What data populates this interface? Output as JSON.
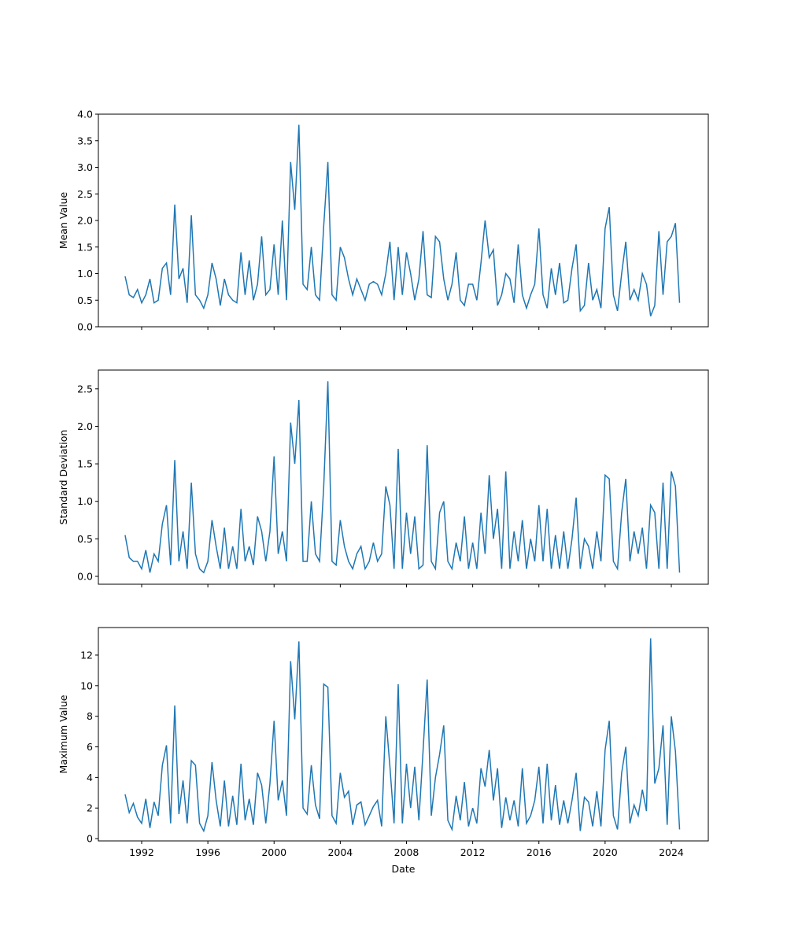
{
  "chart_data": [
    {
      "type": "line",
      "ylabel": "Mean Value",
      "color": "#1f77b4",
      "xlim": [
        1989.385,
        2026.235
      ],
      "ylim": [
        0,
        4
      ],
      "yticks": [
        {
          "value": 0,
          "label": "0.0"
        },
        {
          "value": 0.5,
          "label": "0.5"
        },
        {
          "value": 1,
          "label": "1.0"
        },
        {
          "value": 1.5,
          "label": "1.5"
        },
        {
          "value": 2,
          "label": "2.0"
        },
        {
          "value": 2.5,
          "label": "2.5"
        },
        {
          "value": 3,
          "label": "3.0"
        },
        {
          "value": 3.5,
          "label": "3.5"
        },
        {
          "value": 4,
          "label": "4.0"
        }
      ],
      "x": [
        1991,
        1991.25,
        1991.5,
        1991.75,
        1992,
        1992.25,
        1992.5,
        1992.75,
        1993,
        1993.25,
        1993.5,
        1993.75,
        1994,
        1994.25,
        1994.5,
        1994.75,
        1995,
        1995.25,
        1995.5,
        1995.75,
        1996,
        1996.25,
        1996.5,
        1996.75,
        1997,
        1997.25,
        1997.5,
        1997.75,
        1998,
        1998.25,
        1998.5,
        1998.75,
        1999,
        1999.25,
        1999.5,
        1999.75,
        2000,
        2000.25,
        2000.5,
        2000.75,
        2001,
        2001.25,
        2001.5,
        2001.75,
        2002,
        2002.25,
        2002.5,
        2002.75,
        2003,
        2003.25,
        2003.5,
        2003.75,
        2004,
        2004.25,
        2004.5,
        2004.75,
        2005,
        2005.25,
        2005.5,
        2005.75,
        2006,
        2006.25,
        2006.5,
        2006.75,
        2007,
        2007.25,
        2007.5,
        2007.75,
        2008,
        2008.25,
        2008.5,
        2008.75,
        2009,
        2009.25,
        2009.5,
        2009.75,
        2010,
        2010.25,
        2010.5,
        2010.75,
        2011,
        2011.25,
        2011.5,
        2011.75,
        2012,
        2012.25,
        2012.5,
        2012.75,
        2013,
        2013.25,
        2013.5,
        2013.75,
        2014,
        2014.25,
        2014.5,
        2014.75,
        2015,
        2015.25,
        2015.5,
        2015.75,
        2016,
        2016.25,
        2016.5,
        2016.75,
        2017,
        2017.25,
        2017.5,
        2017.75,
        2018,
        2018.25,
        2018.5,
        2018.75,
        2019,
        2019.25,
        2019.5,
        2019.75,
        2020,
        2020.25,
        2020.5,
        2020.75,
        2021,
        2021.25,
        2021.5,
        2021.75,
        2022,
        2022.25,
        2022.5,
        2022.75,
        2023,
        2023.25,
        2023.5,
        2023.75,
        2024,
        2024.25,
        2024.5
      ],
      "values": [
        0.95,
        0.6,
        0.55,
        0.7,
        0.45,
        0.6,
        0.9,
        0.45,
        0.5,
        1.1,
        1.2,
        0.6,
        2.3,
        0.9,
        1.1,
        0.45,
        2.1,
        0.6,
        0.5,
        0.35,
        0.6,
        1.2,
        0.9,
        0.4,
        0.9,
        0.6,
        0.5,
        0.45,
        1.4,
        0.6,
        1.25,
        0.5,
        0.8,
        1.7,
        0.6,
        0.7,
        1.55,
        0.6,
        2.0,
        0.5,
        3.1,
        2.2,
        3.8,
        0.8,
        0.7,
        1.5,
        0.6,
        0.5,
        1.9,
        3.1,
        0.6,
        0.5,
        1.5,
        1.3,
        0.9,
        0.6,
        0.9,
        0.7,
        0.5,
        0.8,
        0.85,
        0.8,
        0.6,
        1.0,
        1.6,
        0.5,
        1.5,
        0.6,
        1.4,
        1.0,
        0.5,
        0.9,
        1.8,
        0.6,
        0.55,
        1.7,
        1.6,
        0.9,
        0.5,
        0.8,
        1.4,
        0.5,
        0.4,
        0.8,
        0.8,
        0.5,
        1.2,
        2.0,
        1.3,
        1.45,
        0.4,
        0.6,
        1.0,
        0.9,
        0.45,
        1.55,
        0.6,
        0.35,
        0.6,
        0.8,
        1.85,
        0.6,
        0.35,
        1.1,
        0.6,
        1.2,
        0.45,
        0.5,
        1.1,
        1.55,
        0.3,
        0.4,
        1.2,
        0.5,
        0.7,
        0.35,
        1.85,
        2.25,
        0.6,
        0.3,
        1.0,
        1.6,
        0.5,
        0.7,
        0.5,
        1.0,
        0.8,
        0.2,
        0.4,
        1.8,
        0.6,
        1.6,
        1.7,
        1.95,
        0.45
      ]
    },
    {
      "type": "line",
      "ylabel": "Standard Deviation",
      "color": "#1f77b4",
      "xlim": [
        1989.385,
        2026.235
      ],
      "ylim": [
        -0.105,
        2.75
      ],
      "yticks": [
        {
          "value": 0,
          "label": "0.0"
        },
        {
          "value": 0.5,
          "label": "0.5"
        },
        {
          "value": 1,
          "label": "1.0"
        },
        {
          "value": 1.5,
          "label": "1.5"
        },
        {
          "value": 2,
          "label": "2.0"
        },
        {
          "value": 2.5,
          "label": "2.5"
        }
      ],
      "x": [
        1991,
        1991.25,
        1991.5,
        1991.75,
        1992,
        1992.25,
        1992.5,
        1992.75,
        1993,
        1993.25,
        1993.5,
        1993.75,
        1994,
        1994.25,
        1994.5,
        1994.75,
        1995,
        1995.25,
        1995.5,
        1995.75,
        1996,
        1996.25,
        1996.5,
        1996.75,
        1997,
        1997.25,
        1997.5,
        1997.75,
        1998,
        1998.25,
        1998.5,
        1998.75,
        1999,
        1999.25,
        1999.5,
        1999.75,
        2000,
        2000.25,
        2000.5,
        2000.75,
        2001,
        2001.25,
        2001.5,
        2001.75,
        2002,
        2002.25,
        2002.5,
        2002.75,
        2003,
        2003.25,
        2003.5,
        2003.75,
        2004,
        2004.25,
        2004.5,
        2004.75,
        2005,
        2005.25,
        2005.5,
        2005.75,
        2006,
        2006.25,
        2006.5,
        2006.75,
        2007,
        2007.25,
        2007.5,
        2007.75,
        2008,
        2008.25,
        2008.5,
        2008.75,
        2009,
        2009.25,
        2009.5,
        2009.75,
        2010,
        2010.25,
        2010.5,
        2010.75,
        2011,
        2011.25,
        2011.5,
        2011.75,
        2012,
        2012.25,
        2012.5,
        2012.75,
        2013,
        2013.25,
        2013.5,
        2013.75,
        2014,
        2014.25,
        2014.5,
        2014.75,
        2015,
        2015.25,
        2015.5,
        2015.75,
        2016,
        2016.25,
        2016.5,
        2016.75,
        2017,
        2017.25,
        2017.5,
        2017.75,
        2018,
        2018.25,
        2018.5,
        2018.75,
        2019,
        2019.25,
        2019.5,
        2019.75,
        2020,
        2020.25,
        2020.5,
        2020.75,
        2021,
        2021.25,
        2021.5,
        2021.75,
        2022,
        2022.25,
        2022.5,
        2022.75,
        2023,
        2023.25,
        2023.5,
        2023.75,
        2024,
        2024.25,
        2024.5
      ],
      "values": [
        0.55,
        0.25,
        0.2,
        0.2,
        0.1,
        0.35,
        0.05,
        0.3,
        0.2,
        0.7,
        0.95,
        0.15,
        1.55,
        0.2,
        0.6,
        0.1,
        1.25,
        0.3,
        0.1,
        0.05,
        0.2,
        0.75,
        0.4,
        0.1,
        0.65,
        0.1,
        0.4,
        0.1,
        0.9,
        0.2,
        0.4,
        0.15,
        0.8,
        0.6,
        0.2,
        0.6,
        1.6,
        0.3,
        0.6,
        0.2,
        2.05,
        1.5,
        2.35,
        0.2,
        0.2,
        1.0,
        0.3,
        0.2,
        1.2,
        2.6,
        0.2,
        0.15,
        0.75,
        0.4,
        0.2,
        0.1,
        0.3,
        0.4,
        0.1,
        0.2,
        0.45,
        0.2,
        0.3,
        1.2,
        0.95,
        0.1,
        1.7,
        0.1,
        0.85,
        0.3,
        0.8,
        0.1,
        0.15,
        1.75,
        0.2,
        0.1,
        0.85,
        1.0,
        0.2,
        0.1,
        0.45,
        0.2,
        0.8,
        0.1,
        0.45,
        0.1,
        0.85,
        0.3,
        1.35,
        0.5,
        0.9,
        0.1,
        1.4,
        0.1,
        0.6,
        0.2,
        0.75,
        0.1,
        0.5,
        0.2,
        0.95,
        0.2,
        0.9,
        0.1,
        0.55,
        0.1,
        0.6,
        0.1,
        0.5,
        1.05,
        0.1,
        0.5,
        0.4,
        0.1,
        0.6,
        0.2,
        1.35,
        1.3,
        0.2,
        0.1,
        0.85,
        1.3,
        0.2,
        0.6,
        0.3,
        0.65,
        0.1,
        0.95,
        0.85,
        0.1,
        1.25,
        0.1,
        1.4,
        1.2,
        0.05
      ]
    },
    {
      "type": "line",
      "ylabel": "Maximum Value",
      "xlabel": "Date",
      "color": "#1f77b4",
      "xlim": [
        1989.385,
        2026.235
      ],
      "xticks": [
        1992,
        1996,
        2000,
        2004,
        2008,
        2012,
        2016,
        2020,
        2024
      ],
      "ylim": [
        -0.15,
        13.8
      ],
      "yticks": [
        0,
        2,
        4,
        6,
        8,
        10,
        12
      ],
      "x": [
        1991,
        1991.25,
        1991.5,
        1991.75,
        1992,
        1992.25,
        1992.5,
        1992.75,
        1993,
        1993.25,
        1993.5,
        1993.75,
        1994,
        1994.25,
        1994.5,
        1994.75,
        1995,
        1995.25,
        1995.5,
        1995.75,
        1996,
        1996.25,
        1996.5,
        1996.75,
        1997,
        1997.25,
        1997.5,
        1997.75,
        1998,
        1998.25,
        1998.5,
        1998.75,
        1999,
        1999.25,
        1999.5,
        1999.75,
        2000,
        2000.25,
        2000.5,
        2000.75,
        2001,
        2001.25,
        2001.5,
        2001.75,
        2002,
        2002.25,
        2002.5,
        2002.75,
        2003,
        2003.25,
        2003.5,
        2003.75,
        2004,
        2004.25,
        2004.5,
        2004.75,
        2005,
        2005.25,
        2005.5,
        2005.75,
        2006,
        2006.25,
        2006.5,
        2006.75,
        2007,
        2007.25,
        2007.5,
        2007.75,
        2008,
        2008.25,
        2008.5,
        2008.75,
        2009,
        2009.25,
        2009.5,
        2009.75,
        2010,
        2010.25,
        2010.5,
        2010.75,
        2011,
        2011.25,
        2011.5,
        2011.75,
        2012,
        2012.25,
        2012.5,
        2012.75,
        2013,
        2013.25,
        2013.5,
        2013.75,
        2014,
        2014.25,
        2014.5,
        2014.75,
        2015,
        2015.25,
        2015.5,
        2015.75,
        2016,
        2016.25,
        2016.5,
        2016.75,
        2017,
        2017.25,
        2017.5,
        2017.75,
        2018,
        2018.25,
        2018.5,
        2018.75,
        2019,
        2019.25,
        2019.5,
        2019.75,
        2020,
        2020.25,
        2020.5,
        2020.75,
        2021,
        2021.25,
        2021.5,
        2021.75,
        2022,
        2022.25,
        2022.5,
        2022.75,
        2023,
        2023.25,
        2023.5,
        2023.75,
        2024,
        2024.25,
        2024.5
      ],
      "values": [
        2.9,
        1.7,
        2.3,
        1.4,
        1.0,
        2.6,
        0.7,
        2.4,
        1.5,
        4.8,
        6.1,
        1.0,
        8.7,
        1.6,
        3.8,
        1.0,
        5.1,
        4.8,
        1.0,
        0.5,
        1.5,
        5.0,
        2.5,
        0.8,
        3.8,
        0.8,
        2.8,
        0.9,
        4.9,
        1.2,
        2.6,
        0.9,
        4.3,
        3.5,
        1.0,
        3.6,
        7.7,
        2.5,
        3.8,
        1.5,
        11.6,
        7.8,
        12.9,
        2.0,
        1.6,
        4.8,
        2.2,
        1.3,
        10.1,
        9.9,
        1.5,
        1.0,
        4.3,
        2.7,
        3.1,
        0.9,
        2.2,
        2.4,
        0.9,
        1.5,
        2.1,
        2.5,
        0.8,
        8.0,
        4.7,
        1.0,
        10.1,
        1.0,
        4.9,
        2.0,
        4.7,
        1.2,
        5.7,
        10.4,
        1.5,
        4.0,
        5.5,
        7.4,
        1.2,
        0.6,
        2.8,
        1.2,
        3.7,
        0.8,
        2.0,
        1.0,
        4.6,
        3.4,
        5.8,
        2.5,
        4.6,
        0.7,
        2.7,
        1.2,
        2.5,
        0.8,
        4.6,
        1.0,
        1.5,
        2.5,
        4.7,
        1.0,
        4.9,
        1.2,
        3.5,
        0.9,
        2.5,
        1.0,
        2.5,
        4.3,
        0.5,
        2.7,
        2.4,
        0.8,
        3.1,
        0.8,
        5.8,
        7.7,
        1.5,
        0.6,
        4.3,
        6.0,
        1.0,
        2.2,
        1.5,
        3.2,
        1.8,
        13.1,
        3.6,
        4.6,
        7.4,
        0.9,
        8.0,
        5.7,
        0.6
      ]
    }
  ]
}
